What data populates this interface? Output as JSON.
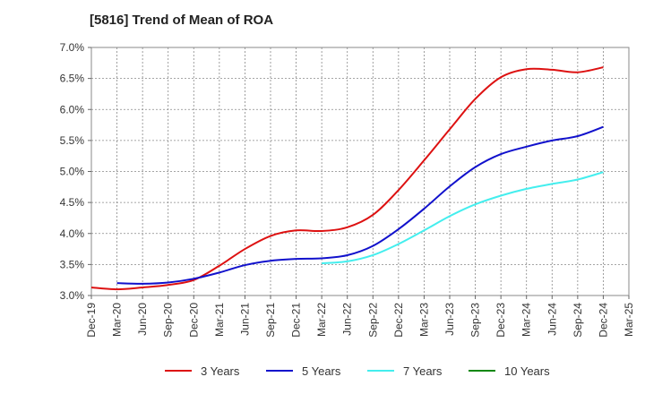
{
  "chart_data": {
    "type": "line",
    "title": "[5816]  Trend of Mean of ROA",
    "xlabel": "",
    "ylabel": "",
    "categories": [
      "Dec-19",
      "Mar-20",
      "Jun-20",
      "Sep-20",
      "Dec-20",
      "Mar-21",
      "Jun-21",
      "Sep-21",
      "Dec-21",
      "Mar-22",
      "Jun-22",
      "Sep-22",
      "Dec-22",
      "Mar-23",
      "Jun-23",
      "Sep-23",
      "Dec-23",
      "Mar-24",
      "Jun-24",
      "Sep-24",
      "Dec-24",
      "Mar-25"
    ],
    "ytick_labels": [
      "3.0%",
      "3.5%",
      "4.0%",
      "4.5%",
      "5.0%",
      "5.5%",
      "6.0%",
      "6.5%",
      "7.0%"
    ],
    "ylim": [
      3.0,
      7.0
    ],
    "grid": true,
    "legend_position": "bottom",
    "series": [
      {
        "name": "3 Years",
        "color": "#dd1111",
        "values": [
          3.13,
          3.1,
          3.13,
          3.17,
          3.25,
          3.48,
          3.75,
          3.96,
          4.05,
          4.04,
          4.1,
          4.3,
          4.7,
          5.18,
          5.68,
          6.17,
          6.52,
          6.65,
          6.64,
          6.6,
          6.68,
          null
        ]
      },
      {
        "name": "5 Years",
        "color": "#1111cc",
        "values": [
          null,
          3.2,
          3.19,
          3.21,
          3.27,
          3.37,
          3.49,
          3.56,
          3.59,
          3.6,
          3.65,
          3.8,
          4.07,
          4.4,
          4.76,
          5.07,
          5.28,
          5.4,
          5.5,
          5.57,
          5.72,
          null
        ]
      },
      {
        "name": "7 Years",
        "color": "#44eeee",
        "values": [
          null,
          null,
          null,
          null,
          null,
          null,
          null,
          null,
          null,
          3.52,
          3.55,
          3.65,
          3.83,
          4.05,
          4.28,
          4.47,
          4.61,
          4.72,
          4.8,
          4.87,
          4.99,
          null
        ]
      },
      {
        "name": "10 Years",
        "color": "#118811",
        "values": [
          null,
          null,
          null,
          null,
          null,
          null,
          null,
          null,
          null,
          null,
          null,
          null,
          null,
          null,
          null,
          null,
          null,
          null,
          null,
          null,
          null,
          null
        ]
      }
    ]
  }
}
